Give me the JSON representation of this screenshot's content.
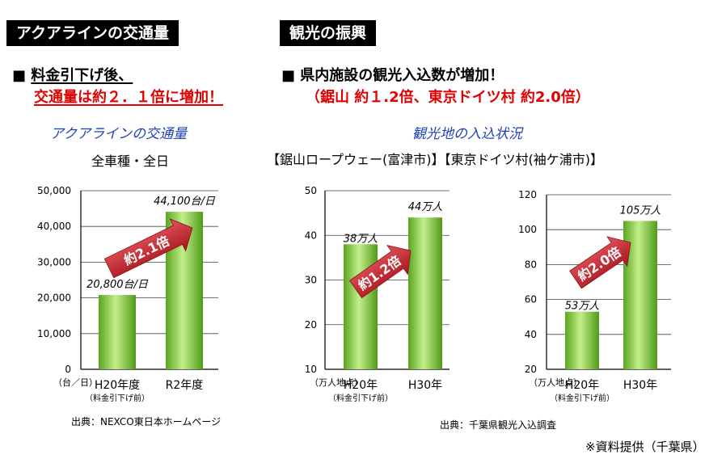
{
  "headers": {
    "left_tag": "アクアラインの交通量",
    "right_tag": "観光の振興"
  },
  "left": {
    "bullet": "■",
    "line1": "料金引下げ後、",
    "line2": "交通量は約２．１倍に増加！",
    "subtitle": "アクアラインの交通量",
    "note": "全車種・全日",
    "source": "出典：NEXCO東日本ホームページ"
  },
  "right": {
    "bullet": "■",
    "line1": "県内施設の観光入込数が増加！",
    "line2": "（鋸山 約１.2倍、東京ドイツ村 約2.0倍）",
    "subtitle": "観光地の入込状況",
    "titles": "【鋸山ロープウェー(富津市)】【東京ドイツ村(袖ケ浦市)】",
    "source": "出典：千葉県観光入込調査"
  },
  "footer": "※資料提供（千葉県）",
  "colors": {
    "bar_light": "#c4ee8a",
    "bar_dark": "#58a61f",
    "arrow": "#c0202a",
    "subtitle": "#1f3fb8",
    "headline_red": "#e00000"
  },
  "chart_data": [
    {
      "type": "bar",
      "categories": [
        "H20年度",
        "R2年度"
      ],
      "category_notes": [
        "（料金引下げ前）",
        ""
      ],
      "values": [
        20800,
        44100
      ],
      "value_labels": [
        "20,800台/日",
        "44,100台/日"
      ],
      "yticks": [
        "0",
        "10,000",
        "20,000",
        "30,000",
        "40,000",
        "50,000"
      ],
      "ylim": [
        0,
        50000
      ],
      "yunit": "（台／日）",
      "arrow_label": "約2.1倍"
    },
    {
      "type": "bar",
      "categories": [
        "H20年",
        "H30年"
      ],
      "category_notes": [
        "（料金引下げ前）",
        ""
      ],
      "values": [
        38,
        44
      ],
      "value_labels": [
        "38万人",
        "44万人"
      ],
      "yticks": [
        "10",
        "20",
        "30",
        "40",
        "50"
      ],
      "ylim": [
        10,
        50
      ],
      "yunit": "（万人地点）",
      "arrow_label": "約1.2倍"
    },
    {
      "type": "bar",
      "categories": [
        "H20年",
        "H30年"
      ],
      "category_notes": [
        "（料金引下げ前）",
        ""
      ],
      "values": [
        53,
        105
      ],
      "value_labels": [
        "53万人",
        "105万人"
      ],
      "yticks": [
        "20",
        "40",
        "60",
        "80",
        "100",
        "120"
      ],
      "ylim": [
        20,
        120
      ],
      "yunit": "（万人地点）",
      "arrow_label": "約2.0倍"
    }
  ]
}
